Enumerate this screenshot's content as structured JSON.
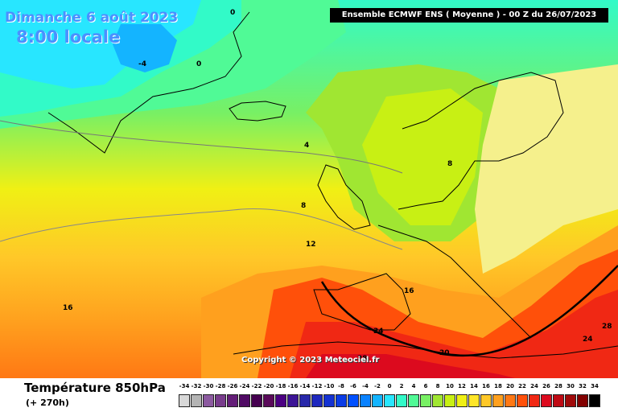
{
  "header": {
    "date": "Dimanche 6 août 2023",
    "time": "8:00 locale",
    "run": "Ensemble ECMWF ENS  ( Moyenne )  -  00 Z du 26/07/2023"
  },
  "footer": {
    "param": "Température 850hPa",
    "lead": "(+ 270h)",
    "copyright": "Copyright © 2023 Meteociel.fr"
  },
  "legend": {
    "values": [
      "-34",
      "-32",
      "-30",
      "-28",
      "-26",
      "-24",
      "-22",
      "-20",
      "-18",
      "-16",
      "-14",
      "-12",
      "-10",
      "-8",
      "-6",
      "-4",
      "-2",
      "0",
      "2",
      "4",
      "6",
      "8",
      "10",
      "12",
      "14",
      "16",
      "18",
      "20",
      "22",
      "24",
      "26",
      "28",
      "30",
      "32",
      "34"
    ],
    "colors": [
      "#d8d8d8",
      "#b4b4b4",
      "#8c5aa0",
      "#783c8c",
      "#641e78",
      "#500a64",
      "#460050",
      "#5a0a5a",
      "#4b0082",
      "#3c1496",
      "#2828aa",
      "#1e28be",
      "#1432d2",
      "#0a3ce6",
      "#0050ff",
      "#0a82ff",
      "#14b4ff",
      "#28e6ff",
      "#32fac8",
      "#50fa96",
      "#78f064",
      "#a0e632",
      "#c8f014",
      "#f0f014",
      "#ffe628",
      "#ffc828",
      "#ffa01e",
      "#ff7814",
      "#ff500a",
      "#f02814",
      "#dc0a1e",
      "#be0a14",
      "#a00a0a",
      "#820000",
      "#000000"
    ]
  },
  "map": {
    "contours": [
      {
        "label": "-4",
        "color": "#000000"
      },
      {
        "label": "0",
        "color": "#000000"
      },
      {
        "label": "0",
        "color": "#000000"
      },
      {
        "label": "4",
        "color": "#000000"
      },
      {
        "label": "8",
        "color": "#000000"
      },
      {
        "label": "8",
        "color": "#000000"
      },
      {
        "label": "12",
        "color": "#000000"
      },
      {
        "label": "16",
        "color": "#000000"
      },
      {
        "label": "16",
        "color": "#000000"
      },
      {
        "label": "20",
        "color": "#000000"
      },
      {
        "label": "24",
        "color": "#000000"
      },
      {
        "label": "24",
        "color": "#000000"
      },
      {
        "label": "28",
        "color": "#000000"
      },
      {
        "label": "28",
        "color": "#000000"
      }
    ]
  }
}
